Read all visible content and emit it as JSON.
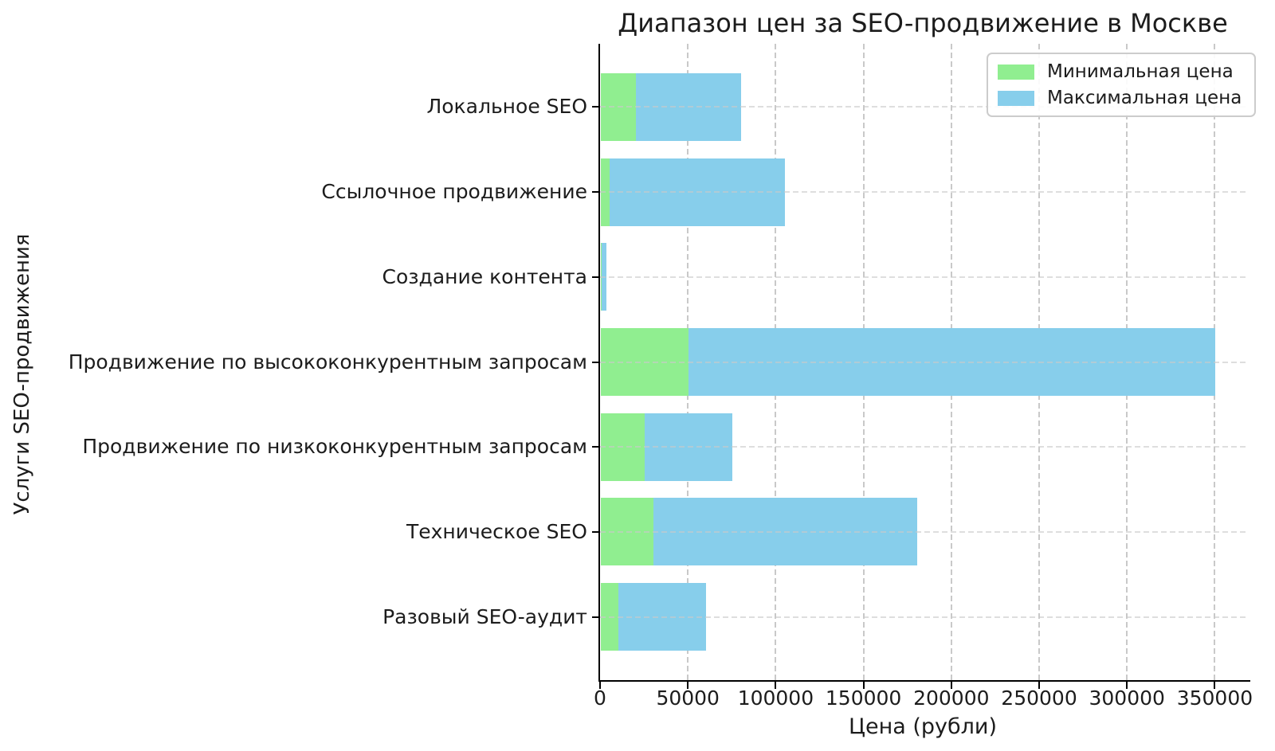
{
  "chart": {
    "title": "Диапазон цен за SEO-продвижение в Москве",
    "xlabel": "Цена (рубли)",
    "ylabel": "Услуги SEO-продвижения"
  },
  "chart_data": {
    "type": "bar",
    "orientation": "horizontal",
    "title": "Диапазон цен за SEO-продвижение в Москве",
    "xlabel": "Цена (рубли)",
    "ylabel": "Услуги SEO-продвижения",
    "categories": [
      "Локальное SEO",
      "Ссылочное продвижение",
      "Создание контента",
      "Продвижение по высококонкурентным запросам",
      "Продвижение по низкоконкурентным запросам",
      "Техническое SEO",
      "Разовый SEO-аудит"
    ],
    "series": [
      {
        "name": "Минимальная цена",
        "color": "#90EE90",
        "values": [
          20000,
          5000,
          500,
          50000,
          25000,
          30000,
          10000
        ]
      },
      {
        "name": "Максимальная цена",
        "color": "#87CEEB",
        "values": [
          80000,
          105000,
          3000,
          350000,
          75000,
          180000,
          60000
        ]
      }
    ],
    "bar_style": "range: green segment spans 0 to min price, blue segment spans min to max price",
    "x_ticks": [
      0,
      50000,
      100000,
      150000,
      200000,
      250000,
      300000,
      350000
    ],
    "x_tick_labels": [
      "0",
      "50000",
      "100000",
      "150000",
      "200000",
      "250000",
      "300000",
      "350000"
    ],
    "xlim": [
      0,
      367500
    ],
    "grid": true,
    "grid_style": "dashed",
    "legend_position": "upper right"
  },
  "colors": {
    "min_price": "#90EE90",
    "max_price": "#87CEEB",
    "grid": "#c9c9c9",
    "spine": "#000000",
    "text": "#1c1c1c",
    "legend_border": "#cccccc",
    "background": "#ffffff"
  }
}
